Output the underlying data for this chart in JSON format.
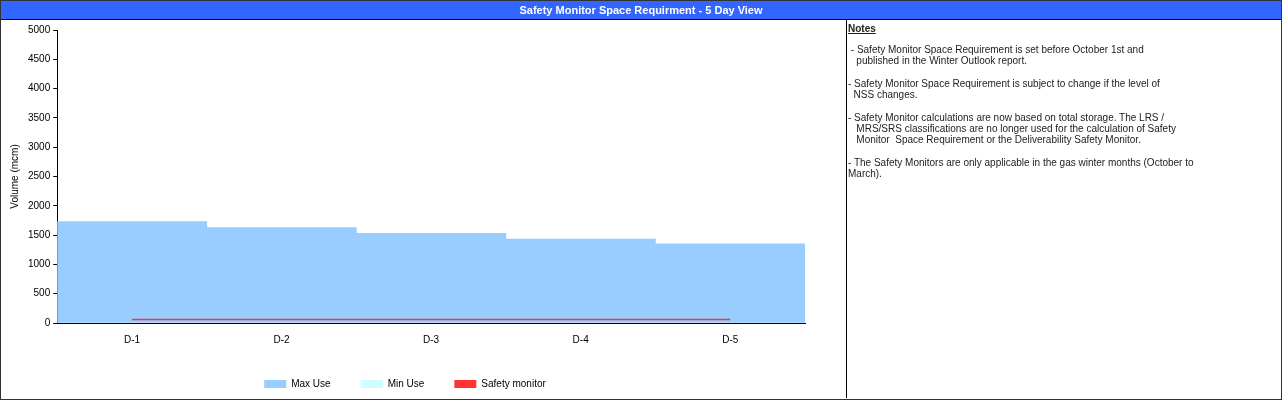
{
  "chart_data": {
    "type": "bar",
    "title": "Safety Monitor Space Requirment - 5 Day View",
    "ylabel": "Volume (mcm)",
    "categories": [
      "D-1",
      "D-2",
      "D-3",
      "D-4",
      "D-5"
    ],
    "series": [
      {
        "name": "Max Use",
        "color": "#99ccff",
        "values": [
          1730,
          1630,
          1530,
          1430,
          1350
        ]
      },
      {
        "name": "Min Use",
        "color": "#ccffff",
        "values": [
          null,
          null,
          null,
          null,
          null
        ]
      },
      {
        "name": "Safety monitor",
        "type": "line",
        "color": "#ff3333",
        "values": [
          60,
          60,
          60,
          60,
          60
        ]
      }
    ],
    "ylim": [
      0,
      5000
    ],
    "yticks": [
      0,
      500,
      1000,
      1500,
      2000,
      2500,
      3000,
      3500,
      4000,
      4500,
      5000
    ],
    "legend": "bottom",
    "marker": "none",
    "annotations": [
      "Notes",
      " - Safety Monitor Space Requirement is set before October 1st and\n   published in the Winter Outlook report.",
      "- Safety Monitor Space Requirement is subject to change if the level of\n  NSS changes.",
      "- Safety Monitor calculations are now based on total storage. The LRS /\n   MRS/SRS classifications are no longer used for the calculation of Safety\n   Monitor  Space Requirement or the Deliverability Safety Monitor.",
      "- The Safety Monitors are only applicable in the gas winter months (October to\nMarch)."
    ]
  }
}
